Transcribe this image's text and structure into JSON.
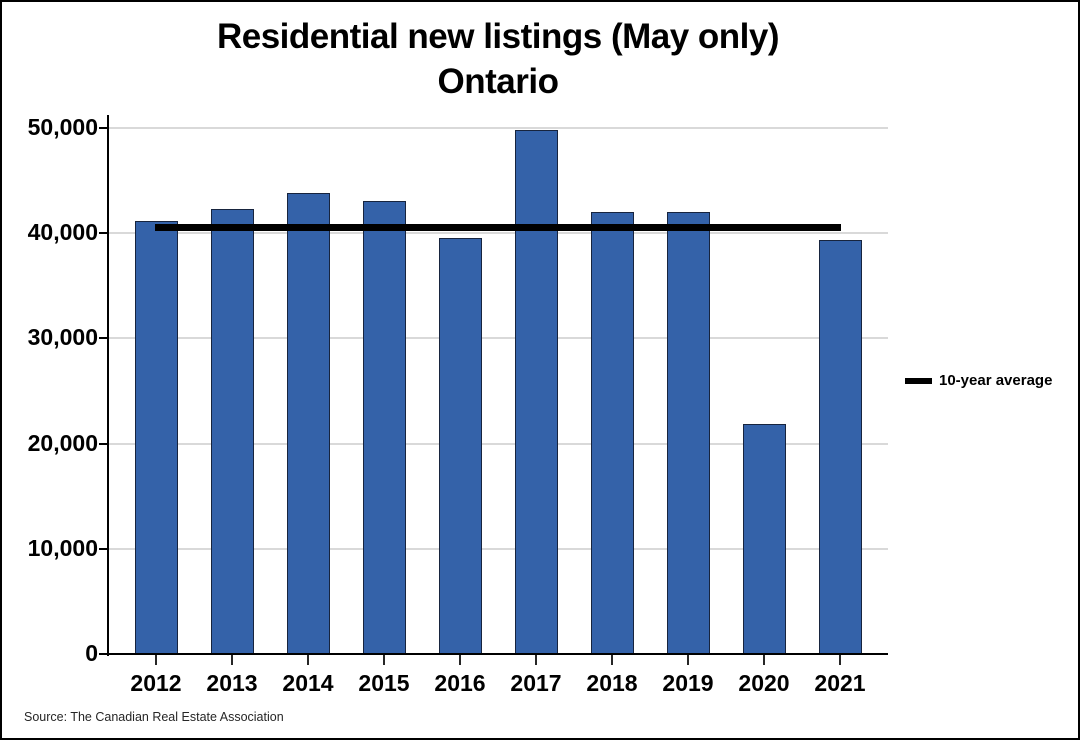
{
  "title": {
    "line1": "Residential new listings (May only)",
    "line2": "Ontario"
  },
  "legend": {
    "label": "10-year average"
  },
  "source": "Source: The Canadian Real Estate Association",
  "chart_data": {
    "type": "bar",
    "title": "Residential new listings (May only) Ontario",
    "xlabel": "",
    "ylabel": "",
    "categories": [
      "2012",
      "2013",
      "2014",
      "2015",
      "2016",
      "2017",
      "2018",
      "2019",
      "2020",
      "2021"
    ],
    "values": [
      41200,
      42300,
      43800,
      43100,
      39500,
      49800,
      42000,
      42000,
      21900,
      39400
    ],
    "average_line": {
      "label": "10-year average",
      "value": 40500
    },
    "ylim": [
      0,
      50000
    ],
    "ytick_step": 10000,
    "ytick_labels": [
      "0",
      "10,000",
      "20,000",
      "30,000",
      "40,000",
      "50,000"
    ],
    "grid": "horizontal",
    "legend_position": "right",
    "colors": {
      "bar_fill": "#3462A9",
      "bar_border": "#17243E",
      "average_line": "#000000",
      "gridline": "#D9D9D9",
      "axis": "#000000"
    }
  }
}
